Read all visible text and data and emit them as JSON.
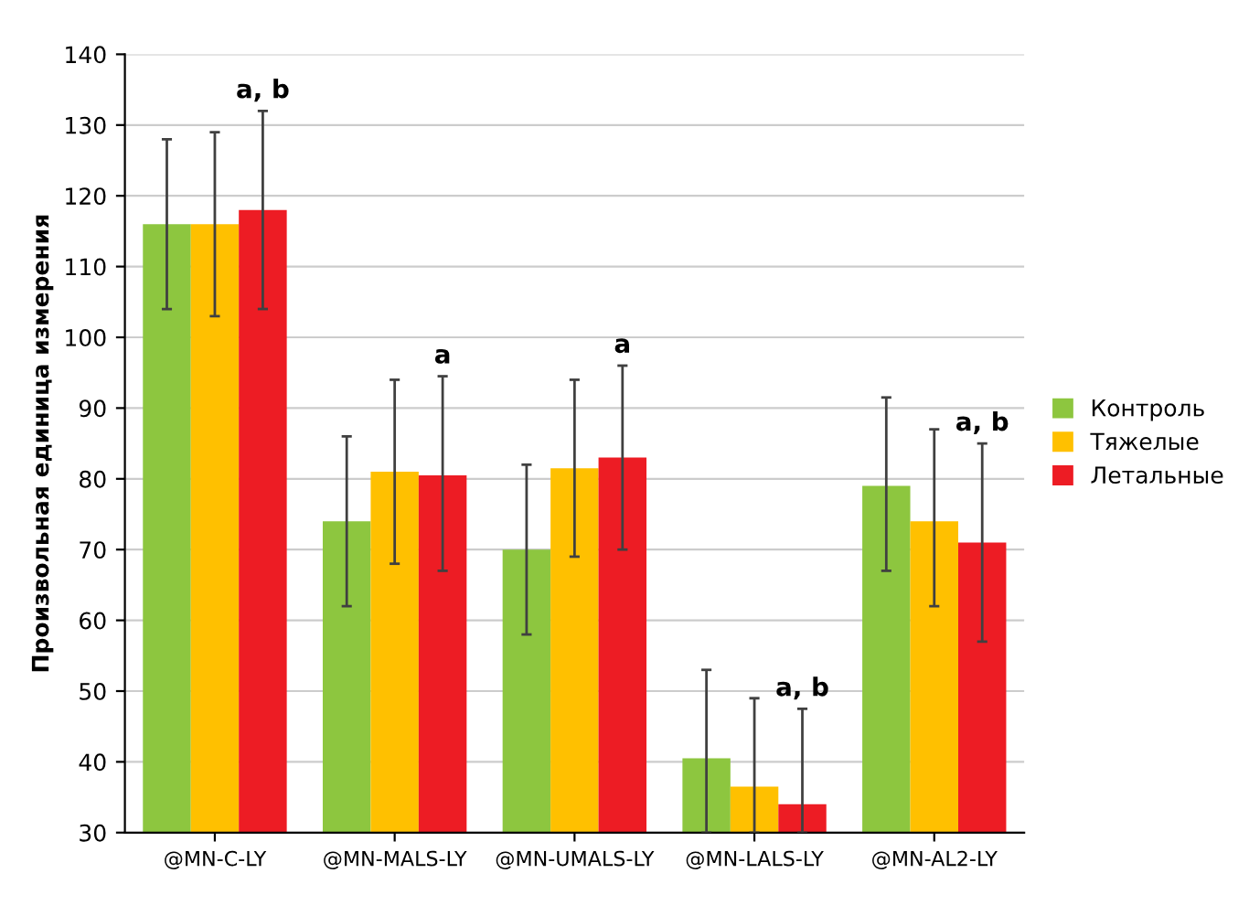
{
  "chart_data": {
    "type": "bar",
    "ylabel": "Произвольная единица измерения",
    "categories": [
      "@MN-C-LY",
      "@MN-MALS-LY",
      "@MN-UMALS-LY",
      "@MN-LALS-LY",
      "@MN-AL2-LY"
    ],
    "series": [
      {
        "name": "Контроль",
        "color": "#8dc63f",
        "values": [
          116,
          74,
          70,
          40.5,
          79
        ],
        "errors": [
          [
            104,
            128
          ],
          [
            62,
            86
          ],
          [
            58,
            82
          ],
          [
            30,
            53
          ],
          [
            67,
            91.5
          ]
        ]
      },
      {
        "name": "Тяжелые",
        "color": "#ffc000",
        "values": [
          116,
          81,
          81.5,
          36.5,
          74
        ],
        "errors": [
          [
            103,
            129
          ],
          [
            68,
            94
          ],
          [
            69,
            94
          ],
          [
            30,
            49
          ],
          [
            62,
            87
          ]
        ]
      },
      {
        "name": "Летальные",
        "color": "#ed1c24",
        "values": [
          118,
          80.5,
          83,
          34,
          71
        ],
        "errors": [
          [
            104,
            132
          ],
          [
            67,
            94.5
          ],
          [
            70,
            96
          ],
          [
            30,
            47.5
          ],
          [
            57,
            85
          ]
        ]
      }
    ],
    "annotations": [
      "a, b",
      "a",
      "a",
      "a, b",
      "a, b"
    ],
    "ylim": [
      30,
      140
    ],
    "yticks": [
      30,
      40,
      50,
      60,
      70,
      80,
      90,
      100,
      110,
      120,
      130,
      140
    ],
    "grid": "y",
    "legend": "right"
  }
}
